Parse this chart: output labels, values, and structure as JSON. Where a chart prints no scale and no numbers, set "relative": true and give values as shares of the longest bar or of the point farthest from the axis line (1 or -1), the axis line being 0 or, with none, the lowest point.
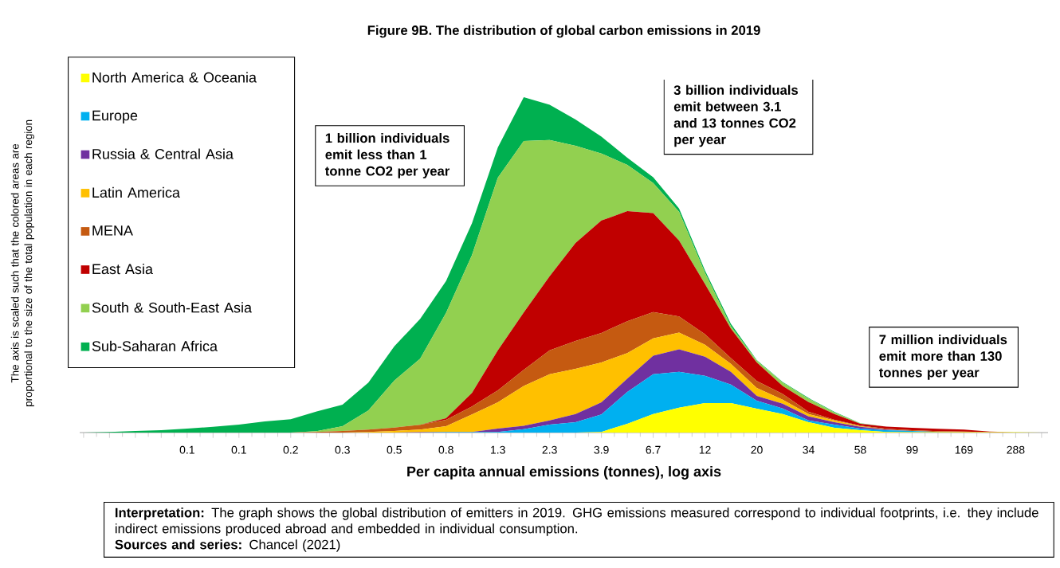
{
  "chart_data": {
    "type": "area",
    "stacked": true,
    "relative": true,
    "legend": "top left",
    "title": "Figure 9B. The distribution of global carbon emissions in 2019",
    "xlabel": "Per capita annual emissions (tonnes), log axis",
    "ylabel": "The axis is scaled such that the colored areas are proportional to the size of the total population in each region",
    "categories": [
      null,
      null,
      null,
      null,
      "0.1",
      null,
      "0.1",
      null,
      "0.2",
      null,
      "0.3",
      null,
      "0.5",
      null,
      "0.8",
      null,
      "1.3",
      null,
      "2.3",
      null,
      "3.9",
      null,
      "6.7",
      null,
      "12",
      null,
      "20",
      null,
      "34",
      null,
      "58",
      null,
      "99",
      null,
      "169",
      null,
      "288",
      null
    ],
    "series": [
      {
        "name": "North America & Oceania",
        "color": "#ffff00",
        "values": [
          0,
          0,
          0,
          0,
          0,
          0,
          0,
          0,
          0,
          0,
          0,
          0,
          0,
          0,
          0,
          0,
          0,
          0,
          0,
          0,
          0.002,
          0.026,
          0.055,
          0.074,
          0.088,
          0.088,
          0.071,
          0.055,
          0.031,
          0.014,
          0.007,
          0.002,
          0.001,
          0.001,
          0.001,
          0.001,
          0.001,
          0
        ]
      },
      {
        "name": "Europe",
        "color": "#00b0f0",
        "values": [
          0,
          0,
          0,
          0,
          0,
          0,
          0,
          0,
          0,
          0,
          0,
          0,
          0,
          0,
          0.001,
          0.001,
          0.002,
          0.01,
          0.024,
          0.031,
          0.052,
          0.095,
          0.119,
          0.107,
          0.081,
          0.055,
          0.024,
          0.017,
          0.005,
          0.01,
          0.005,
          0.005,
          0.004,
          0.001,
          0,
          0,
          0,
          0
        ]
      },
      {
        "name": "Russia & Central Asia",
        "color": "#7030a0",
        "values": [
          0,
          0,
          0,
          0,
          0,
          0,
          0,
          0,
          0,
          0,
          0,
          0,
          0,
          0.001,
          0.001,
          0.001,
          0.01,
          0.01,
          0.012,
          0.024,
          0.036,
          0.04,
          0.055,
          0.067,
          0.057,
          0.038,
          0.014,
          0.014,
          0.012,
          0.007,
          0.005,
          0.002,
          0,
          0,
          0,
          0,
          0,
          0
        ]
      },
      {
        "name": "Latin America",
        "color": "#ffc000",
        "values": [
          0,
          0,
          0,
          0,
          0,
          0,
          0,
          0,
          0,
          0,
          0,
          0.002,
          0.005,
          0.008,
          0.017,
          0.052,
          0.078,
          0.119,
          0.138,
          0.135,
          0.119,
          0.076,
          0.052,
          0.05,
          0.036,
          0.024,
          0.024,
          0.012,
          0.007,
          0.005,
          0.002,
          0,
          0,
          0,
          0,
          0,
          0,
          0
        ]
      },
      {
        "name": "MENA",
        "color": "#c55a11",
        "values": [
          0,
          0,
          0,
          0,
          0,
          0,
          0,
          0,
          0,
          0.002,
          0.005,
          0.007,
          0.01,
          0.014,
          0.019,
          0.024,
          0.036,
          0.048,
          0.071,
          0.083,
          0.088,
          0.095,
          0.078,
          0.048,
          0.031,
          0.017,
          0.021,
          0.017,
          0.007,
          0.002,
          0.002,
          0.002,
          0.002,
          0.002,
          0.002,
          0,
          0,
          0
        ]
      },
      {
        "name": "East Asia",
        "color": "#c00000",
        "values": [
          0,
          0,
          0,
          0,
          0,
          0,
          0,
          0,
          0,
          0,
          0,
          0,
          0,
          0,
          0.005,
          0.04,
          0.119,
          0.171,
          0.221,
          0.292,
          0.335,
          0.328,
          0.295,
          0.226,
          0.15,
          0.088,
          0.055,
          0.024,
          0.029,
          0.017,
          0.005,
          0.007,
          0.007,
          0.007,
          0.006,
          0.002,
          0,
          0
        ]
      },
      {
        "name": "South & South-East Asia",
        "color": "#92d050",
        "values": [
          0,
          0,
          0,
          0,
          0,
          0,
          0,
          0,
          0,
          0.002,
          0.014,
          0.057,
          0.14,
          0.197,
          0.314,
          0.411,
          0.515,
          0.511,
          0.406,
          0.29,
          0.2,
          0.138,
          0.09,
          0.086,
          0.033,
          0.007,
          0.005,
          0.01,
          0.01,
          0.005,
          0.001,
          0,
          0,
          0,
          0,
          0,
          0,
          0
        ]
      },
      {
        "name": "Sub-Saharan Africa",
        "color": "#00b050",
        "values": [
          0,
          0.002,
          0.005,
          0.007,
          0.012,
          0.017,
          0.024,
          0.033,
          0.04,
          0.059,
          0.064,
          0.083,
          0.102,
          0.119,
          0.095,
          0.095,
          0.09,
          0.131,
          0.105,
          0.078,
          0.05,
          0.021,
          0.017,
          0.01,
          0.007,
          0.007,
          0.002,
          0.002,
          0.002,
          0.002,
          0.001,
          0,
          0,
          0,
          0,
          0,
          0,
          0
        ]
      }
    ],
    "annotations": [
      "1 billion individuals emit less than 1 tonne CO2 per year",
      "3 billion individuals emit between 3.1 and 13 tonnes CO2 per year",
      "7 million individuals emit more than 130 tonnes per year",
      "**Interpretation:** The graph shows the global distribution of emitters in 2019. GHG emissions measured correspond to individual footprints, i.e. they include indirect emissions produced abroad and embedded in individual consumption.",
      "**Sources and series:** Chancel (2021)"
    ]
  }
}
